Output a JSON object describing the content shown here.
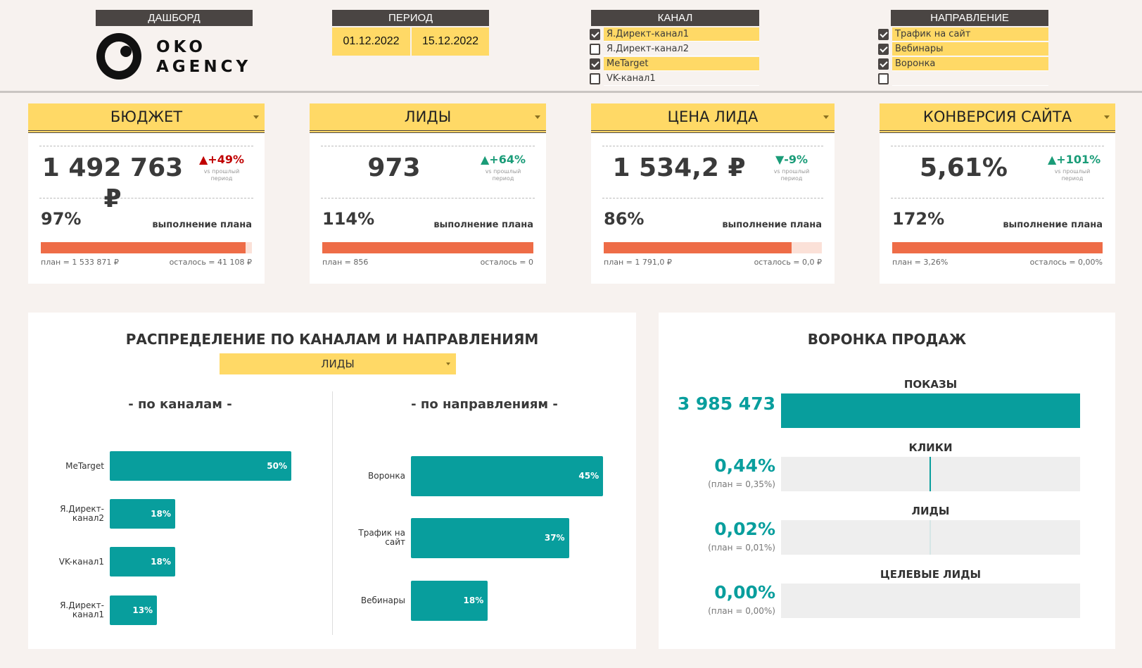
{
  "header": {
    "dashboard_label": "ДАШБОРД",
    "logo_text": [
      "OKO",
      "AGENCY"
    ],
    "period_label": "ПЕРИОД",
    "date_from": "01.12.2022",
    "date_to": "15.12.2022"
  },
  "filters": {
    "channel": {
      "label": "КАНАЛ",
      "items": [
        {
          "label": "Я.Директ-канал1",
          "checked": true
        },
        {
          "label": "Я.Директ-канал2",
          "checked": false
        },
        {
          "label": "MeTarget",
          "checked": true
        },
        {
          "label": "VK-канал1",
          "checked": false
        }
      ]
    },
    "direction": {
      "label": "НАПРАВЛЕНИЕ",
      "items": [
        {
          "label": "Трафик на сайт",
          "checked": true
        },
        {
          "label": "Вебинары",
          "checked": true
        },
        {
          "label": "Воронка",
          "checked": true
        },
        {
          "label": "",
          "checked": false
        }
      ]
    }
  },
  "kpis": [
    {
      "title": "БЮДЖЕТ",
      "value": "1 492 763 ₽",
      "delta": "▲+49%",
      "delta_dir": "up-bad",
      "delta_note": "vs прошлый период",
      "plan_pct": "97%",
      "plan_fraction": 0.97,
      "plan_label": "выполнение плана",
      "plan": "план = 1 533 871 ₽",
      "left": "осталось = 41 108 ₽"
    },
    {
      "title": "ЛИДЫ",
      "value": "973",
      "delta": "▲+64%",
      "delta_dir": "up",
      "delta_note": "vs прошлый период",
      "plan_pct": "114%",
      "plan_fraction": 1.0,
      "plan_label": "выполнение плана",
      "plan": "план = 856",
      "left": "осталось = 0"
    },
    {
      "title": "ЦЕНА ЛИДА",
      "value": "1 534,2 ₽",
      "delta": "▼-9%",
      "delta_dir": "down",
      "delta_note": "vs прошлый период",
      "plan_pct": "86%",
      "plan_fraction": 0.86,
      "plan_label": "выполнение плана",
      "plan": "план = 1 791,0 ₽",
      "left": "осталось = 0,0 ₽"
    },
    {
      "title": "КОНВЕРСИЯ САЙТА",
      "value": "5,61%",
      "delta": "▲+101%",
      "delta_dir": "up",
      "delta_note": "vs прошлый период",
      "plan_pct": "172%",
      "plan_fraction": 1.0,
      "plan_label": "выполнение плана",
      "plan": "план = 3,26%",
      "left": "осталось = 0,00%"
    }
  ],
  "distribution": {
    "title": "РАСПРЕДЕЛЕНИЕ ПО КАНАЛАМ И НАПРАВЛЕНИЯМ",
    "metric": "ЛИДЫ"
  },
  "chart_data": [
    {
      "type": "bar",
      "title": "- по каналам -",
      "categories": [
        "MeTarget",
        "Я.Директ-канал2",
        "VK-канал1",
        "Я.Директ-канал1"
      ],
      "values": [
        50,
        18,
        18,
        13
      ],
      "labels": [
        "50%",
        "18%",
        "18%",
        "13%"
      ]
    },
    {
      "type": "bar",
      "title": "- по направлениям -",
      "categories": [
        "Воронка",
        "Трафик на сайт",
        "Вебинары"
      ],
      "values": [
        45,
        37,
        18
      ],
      "labels": [
        "45%",
        "37%",
        "18%"
      ]
    }
  ],
  "funnel": {
    "title": "ВОРОНКА ПРОДАЖ",
    "stages": [
      {
        "label": "ПОКАЗЫ",
        "value": "3 985 473",
        "plan": "",
        "fill": 1.0
      },
      {
        "label": "КЛИКИ",
        "value": "0,44%",
        "plan": "(план = 0,35%)",
        "fill": null,
        "actual": 0.44
      },
      {
        "label": "ЛИДЫ",
        "value": "0,02%",
        "plan": "(план = 0,01%)",
        "fill": null,
        "actual": 0.02
      },
      {
        "label": "ЦЕЛЕВЫЕ ЛИДЫ",
        "value": "0,00%",
        "plan": "(план = 0,00%)",
        "fill": null,
        "actual": 0
      }
    ]
  },
  "colors": {
    "yellow": "#ffd966",
    "dark": "#4a4543",
    "teal": "#089e9d",
    "orange": "#ee6c47",
    "red": "#c00000",
    "green": "#1a9c78"
  }
}
